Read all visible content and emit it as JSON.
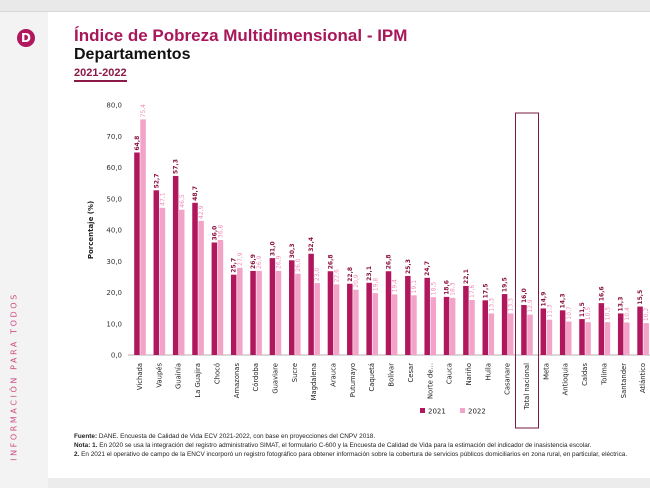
{
  "header": {
    "logo_letter": "D",
    "title": "Índice de Pobreza Multidimensional - IPM",
    "subtitle": "Departamentos",
    "years": "2021-2022"
  },
  "sidebar": {
    "vertical_text": "INFORMACIÓN PARA TODOS"
  },
  "colors": {
    "accent": "#a8175a",
    "series_2021": "#b0175c",
    "series_2022": "#f4a3c8"
  },
  "chart_data": {
    "type": "bar",
    "title": "",
    "xlabel": "",
    "ylabel": "Porcentaje (%)",
    "ylim": [
      0,
      80
    ],
    "yticks": [
      "0,0",
      "10,0",
      "20,0",
      "30,0",
      "40,0",
      "50,0",
      "60,0",
      "70,0",
      "80,0"
    ],
    "grid": false,
    "legend_position": "bottom-center",
    "highlight_category": "Total nacional",
    "categories": [
      "Vichada",
      "Vaupés",
      "Guainía",
      "La Guajira",
      "Chocó",
      "Amazonas",
      "Córdoba",
      "Guaviare",
      "Sucre",
      "Magdalena",
      "Arauca",
      "Putumayo",
      "Caquetá",
      "Bolívar",
      "Cesar",
      "Norte de...",
      "Cauca",
      "Nariño",
      "Huila",
      "Casanare",
      "Total nacional",
      "Meta",
      "Antioquia",
      "Caldas",
      "Tolima",
      "Santander",
      "Atlántico"
    ],
    "series": [
      {
        "name": "2021",
        "values": [
          64.8,
          52.7,
          57.3,
          48.7,
          36.0,
          25.7,
          26.9,
          31.0,
          30.3,
          32.4,
          26.8,
          22.8,
          23.1,
          26.8,
          25.3,
          24.7,
          18.6,
          22.1,
          17.5,
          19.5,
          16.0,
          14.9,
          14.3,
          11.5,
          16.6,
          13.3,
          15.5
        ]
      },
      {
        "name": "2022",
        "values": [
          75.4,
          47.1,
          46.5,
          42.9,
          36.8,
          27.9,
          26.9,
          26.9,
          26.0,
          23.0,
          22.6,
          20.9,
          19.8,
          19.4,
          19.1,
          18.5,
          18.3,
          17.6,
          13.3,
          13.3,
          12.9,
          11.3,
          10.7,
          10.5,
          10.5,
          10.4,
          10.2
        ]
      }
    ]
  },
  "notes": {
    "source_label": "Fuente:",
    "source_text": " DANE. Encuesta de Calidad de Vida ECV 2021-2022, con base en proyecciones del CNPV 2018.",
    "note_label": "Nota",
    "note1_num": ": 1.",
    "note1_text": " En 2020 se usa la integración del registro administrativo SIMAT, el formulario C-600 y la Encuesta de Calidad de Vida para la estimación del indicador de inasistencia escolar.",
    "note2_num": "2.",
    "note2_text": " En 2021 el operativo de campo de la ENCV incorporó un registro fotográfico para obtener información sobre la cobertura de servicios públicos domiciliarios en zona rural, en particular, eléctrica."
  }
}
